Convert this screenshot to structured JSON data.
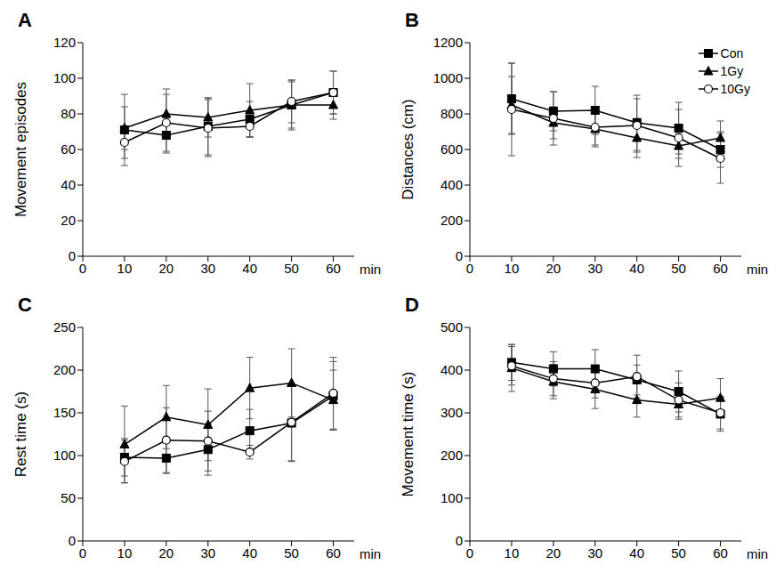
{
  "chart_data": [
    {
      "type": "line",
      "title": "A",
      "x_label": "min",
      "y_label": "Movement episodes",
      "x": [
        10,
        20,
        30,
        40,
        50,
        60
      ],
      "xlim": [
        0,
        65
      ],
      "xticks": [
        0,
        10,
        20,
        30,
        40,
        50,
        60
      ],
      "ylim": [
        0,
        120
      ],
      "yticks": [
        0,
        20,
        40,
        60,
        80,
        100,
        120
      ],
      "series": [
        {
          "name": "Con",
          "color": "#000000",
          "marker": "square",
          "values": [
            71,
            68,
            73,
            77,
            85,
            92
          ],
          "errors": [
            20,
            10,
            16,
            10,
            13,
            12
          ]
        },
        {
          "name": "1Gy",
          "color": "#000000",
          "marker": "triangle",
          "values": [
            72,
            80,
            78,
            82,
            85,
            85
          ],
          "errors": [
            12,
            14,
            11,
            15,
            14,
            8
          ]
        },
        {
          "name": "10Gy",
          "color": "#000000",
          "marker": "open_circle",
          "values": [
            64,
            75,
            72,
            73,
            87,
            92
          ],
          "errors": [
            9,
            16,
            16,
            6,
            12,
            12
          ]
        }
      ]
    },
    {
      "type": "line",
      "title": "B",
      "x_label": "min",
      "y_label": "Distances (cm)",
      "legend": "upper right",
      "x": [
        10,
        20,
        30,
        40,
        50,
        60
      ],
      "xlim": [
        0,
        65
      ],
      "xticks": [
        0,
        10,
        20,
        30,
        40,
        50,
        60
      ],
      "ylim": [
        0,
        1200
      ],
      "yticks": [
        0,
        200,
        400,
        600,
        800,
        1000,
        1200
      ],
      "series": [
        {
          "name": "Con",
          "color": "#000000",
          "marker": "square",
          "values": [
            885,
            815,
            820,
            750,
            720,
            600
          ],
          "errors": [
            200,
            110,
            135,
            155,
            145,
            100
          ]
        },
        {
          "name": "1Gy",
          "color": "#000000",
          "marker": "triangle",
          "values": [
            850,
            750,
            715,
            665,
            620,
            665
          ],
          "errors": [
            160,
            90,
            100,
            110,
            70,
            95
          ]
        },
        {
          "name": "10Gy",
          "color": "#000000",
          "marker": "open_circle",
          "values": [
            825,
            775,
            725,
            735,
            665,
            550
          ],
          "errors": [
            260,
            150,
            100,
            150,
            160,
            140
          ]
        }
      ]
    },
    {
      "type": "line",
      "title": "C",
      "x_label": "min",
      "y_label": "Rest time (s)",
      "x": [
        10,
        20,
        30,
        40,
        50,
        60
      ],
      "xlim": [
        0,
        65
      ],
      "xticks": [
        0,
        10,
        20,
        30,
        40,
        50,
        60
      ],
      "ylim": [
        0,
        250
      ],
      "yticks": [
        0,
        50,
        100,
        150,
        200,
        250
      ],
      "series": [
        {
          "name": "Con",
          "color": "#000000",
          "marker": "square",
          "values": [
            98,
            97,
            107,
            129,
            138,
            170
          ],
          "errors": [
            22,
            18,
            30,
            25,
            45,
            40
          ]
        },
        {
          "name": "1Gy",
          "color": "#000000",
          "marker": "triangle",
          "values": [
            113,
            145,
            136,
            179,
            185,
            165
          ],
          "errors": [
            45,
            37,
            42,
            36,
            40,
            35
          ]
        },
        {
          "name": "10Gy",
          "color": "#000000",
          "marker": "open_circle",
          "values": [
            93,
            118,
            117,
            104,
            139,
            173
          ],
          "errors": [
            25,
            38,
            35,
            8,
            45,
            42
          ]
        }
      ]
    },
    {
      "type": "line",
      "title": "D",
      "x_label": "min",
      "y_label": "Movement time (s)",
      "x": [
        10,
        20,
        30,
        40,
        50,
        60
      ],
      "xlim": [
        0,
        65
      ],
      "xticks": [
        0,
        10,
        20,
        30,
        40,
        50,
        60
      ],
      "ylim": [
        0,
        500
      ],
      "yticks": [
        0,
        100,
        200,
        300,
        400,
        500
      ],
      "series": [
        {
          "name": "Con",
          "color": "#000000",
          "marker": "square",
          "values": [
            418,
            403,
            403,
            377,
            350,
            297
          ],
          "errors": [
            42,
            40,
            45,
            35,
            48,
            40
          ]
        },
        {
          "name": "1Gy",
          "color": "#000000",
          "marker": "triangle",
          "values": [
            405,
            373,
            355,
            330,
            320,
            335
          ],
          "errors": [
            55,
            40,
            45,
            40,
            35,
            45
          ]
        },
        {
          "name": "10Gy",
          "color": "#000000",
          "marker": "open_circle",
          "values": [
            410,
            380,
            370,
            385,
            330,
            300
          ],
          "errors": [
            45,
            40,
            35,
            50,
            40,
            38
          ]
        }
      ]
    }
  ]
}
